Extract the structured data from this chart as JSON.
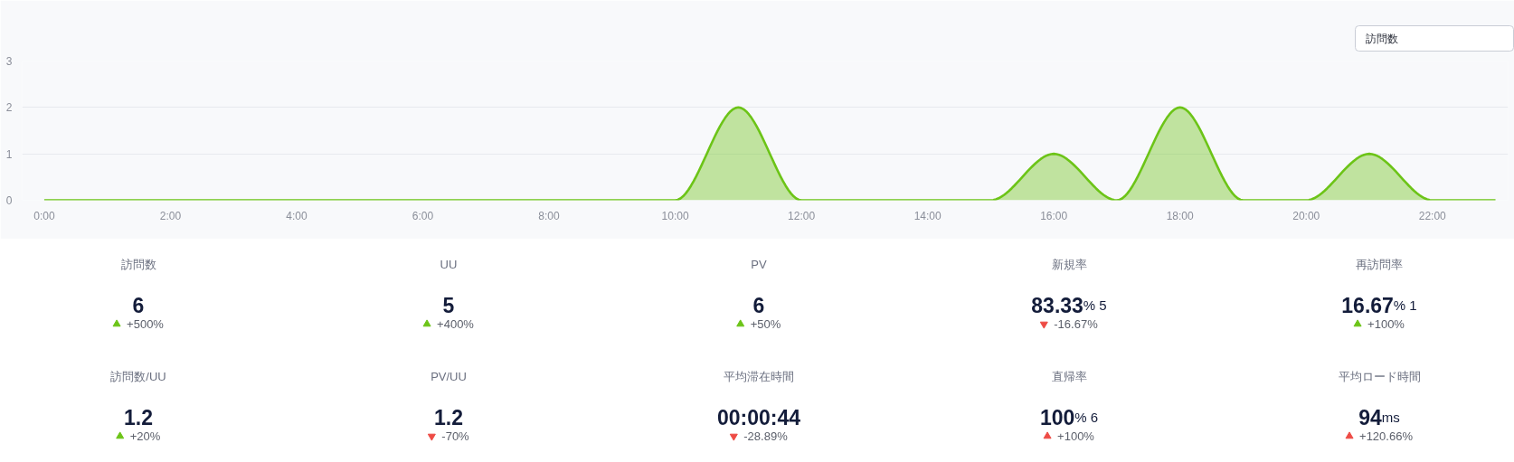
{
  "chart_data": [
    {
      "type": "area",
      "x": [
        0,
        1,
        2,
        3,
        4,
        5,
        6,
        7,
        8,
        9,
        10,
        11,
        12,
        13,
        14,
        15,
        16,
        17,
        18,
        19,
        20,
        21,
        22,
        23
      ],
      "series": [
        {
          "color": "#6cc417",
          "values": [
            0,
            0,
            0,
            0,
            0,
            0,
            0,
            0,
            0,
            0,
            0,
            2,
            0,
            0,
            0,
            0,
            1,
            0,
            2,
            0,
            0,
            1,
            0,
            0
          ]
        }
      ],
      "xlim": [
        -0.35,
        23.2
      ],
      "xticks": [
        {
          "value": 0,
          "label": "0:00"
        },
        {
          "value": 2,
          "label": "2:00"
        },
        {
          "value": 4,
          "label": "4:00"
        },
        {
          "value": 6,
          "label": "6:00"
        },
        {
          "value": 8,
          "label": "8:00"
        },
        {
          "value": 10,
          "label": "10:00"
        },
        {
          "value": 12,
          "label": "12:00"
        },
        {
          "value": 14,
          "label": "14:00"
        },
        {
          "value": 16,
          "label": "16:00"
        },
        {
          "value": 18,
          "label": "18:00"
        },
        {
          "value": 20,
          "label": "20:00"
        },
        {
          "value": 22,
          "label": "22:00"
        }
      ],
      "ylim": [
        0,
        3
      ],
      "yticks": [
        0,
        1,
        2,
        3
      ],
      "grid": "y",
      "annotations": [
        "訪問数"
      ]
    },
    {
      "type": "other",
      "title": "訪問数",
      "annotations": [
        "6"
      ],
      "values": [
        500
      ],
      "value_labels": [
        "+500%"
      ],
      "colors": [
        "#6cc417"
      ]
    },
    {
      "type": "other",
      "title": "UU",
      "annotations": [
        "5"
      ],
      "values": [
        400
      ],
      "value_labels": [
        "+400%"
      ],
      "colors": [
        "#6cc417"
      ]
    },
    {
      "type": "other",
      "title": "PV",
      "annotations": [
        "6"
      ],
      "values": [
        50
      ],
      "value_labels": [
        "+50%"
      ],
      "colors": [
        "#6cc417"
      ]
    },
    {
      "type": "other",
      "title": "新規率",
      "annotations": [
        "83.33",
        "% 5"
      ],
      "values": [
        -16.67
      ],
      "value_labels": [
        "-16.67%"
      ],
      "colors": [
        "#ee4b45"
      ]
    },
    {
      "type": "other",
      "title": "再訪問率",
      "annotations": [
        "16.67",
        "% 1"
      ],
      "values": [
        100
      ],
      "value_labels": [
        "+100%"
      ],
      "colors": [
        "#6cc417"
      ]
    },
    {
      "type": "other",
      "title": "訪問数/UU",
      "annotations": [
        "1.2"
      ],
      "values": [
        20
      ],
      "value_labels": [
        "+20%"
      ],
      "colors": [
        "#6cc417"
      ]
    },
    {
      "type": "other",
      "title": "PV/UU",
      "annotations": [
        "1.2"
      ],
      "values": [
        -70
      ],
      "value_labels": [
        "-70%"
      ],
      "colors": [
        "#ee4b45"
      ]
    },
    {
      "type": "other",
      "title": "平均滞在時間",
      "annotations": [
        "00:00:44"
      ],
      "values": [
        -28.89
      ],
      "value_labels": [
        "-28.89%"
      ],
      "colors": [
        "#ee4b45"
      ]
    },
    {
      "type": "other",
      "title": "直帰率",
      "annotations": [
        "100",
        "% 6"
      ],
      "values": [
        100
      ],
      "value_labels": [
        "+100%"
      ],
      "colors": [
        "#ee4b45"
      ]
    },
    {
      "type": "other",
      "title": "平均ロード時間",
      "annotations": [
        "94",
        "ms"
      ],
      "values": [
        120.66
      ],
      "value_labels": [
        "+120.66%"
      ],
      "colors": [
        "#ee4b45"
      ]
    }
  ]
}
